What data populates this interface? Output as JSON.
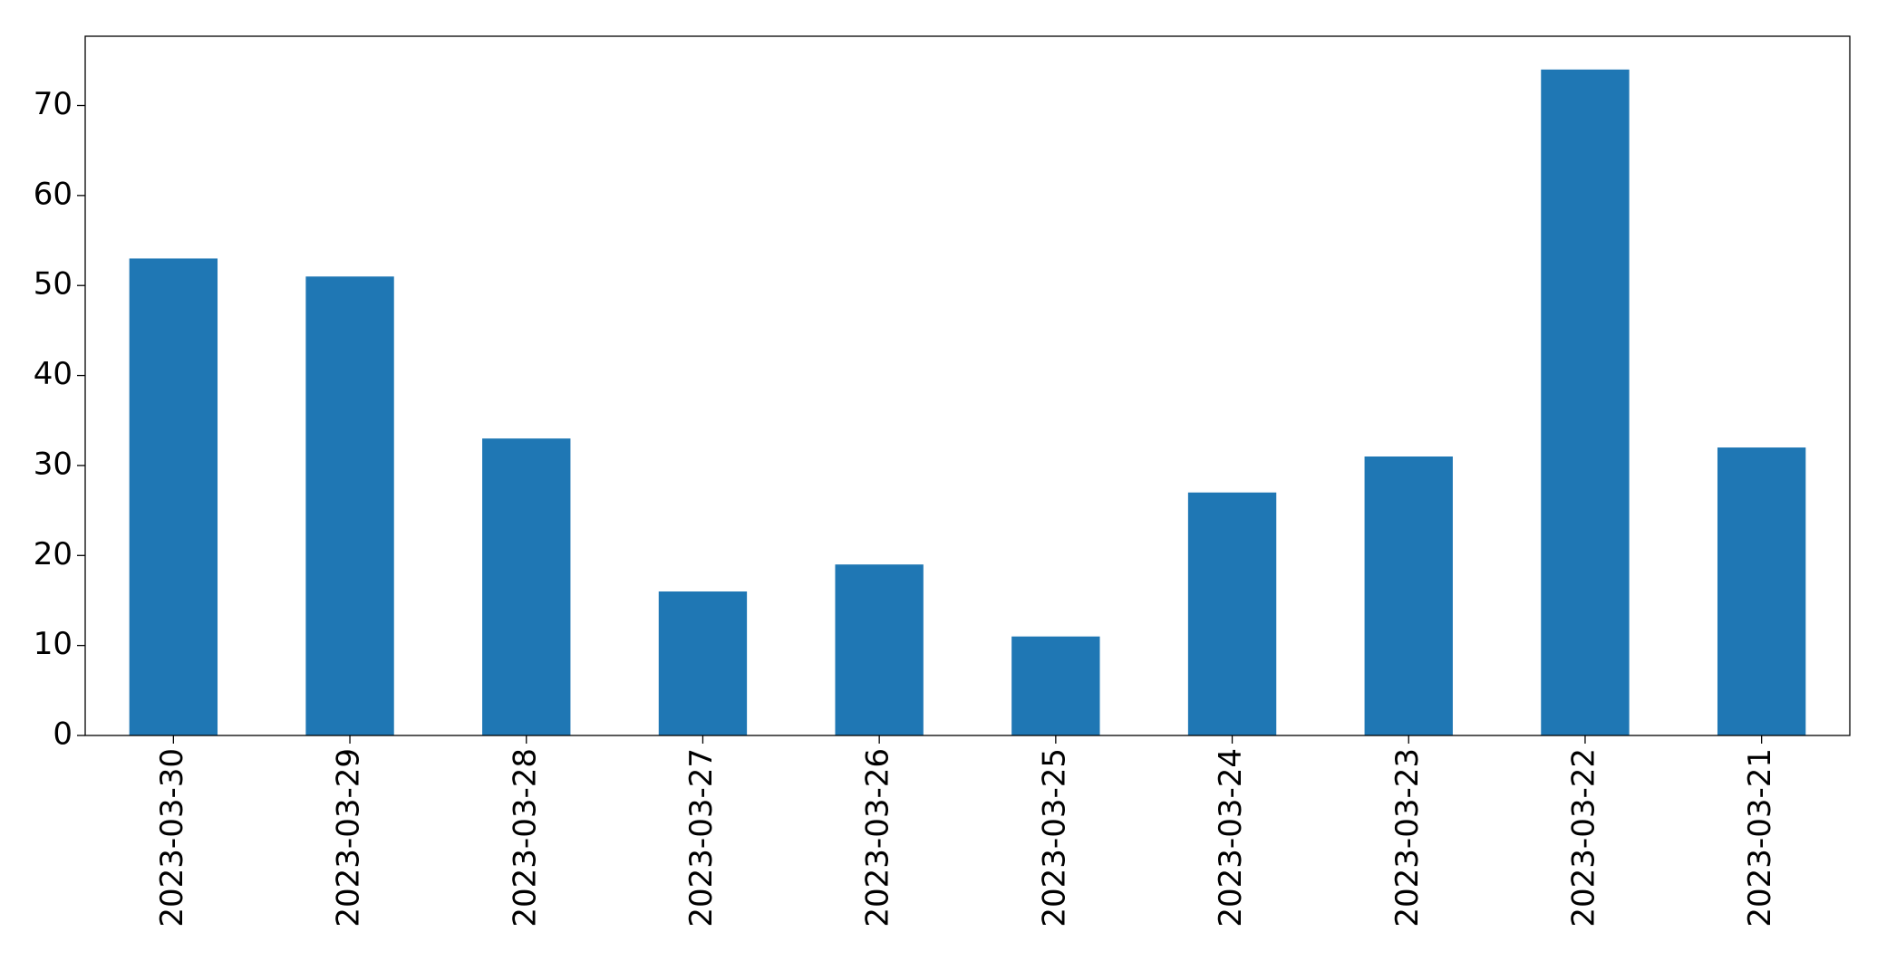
{
  "chart_data": {
    "type": "bar",
    "categories": [
      "2023-03-30",
      "2023-03-29",
      "2023-03-28",
      "2023-03-27",
      "2023-03-26",
      "2023-03-25",
      "2023-03-24",
      "2023-03-23",
      "2023-03-22",
      "2023-03-21"
    ],
    "values": [
      53,
      51,
      33,
      16,
      19,
      11,
      27,
      31,
      74,
      32
    ],
    "color": "#1f77b4",
    "ylim": [
      0,
      77.7
    ],
    "yticks": [
      0,
      10,
      20,
      30,
      40,
      50,
      60,
      70
    ],
    "grid": false
  }
}
